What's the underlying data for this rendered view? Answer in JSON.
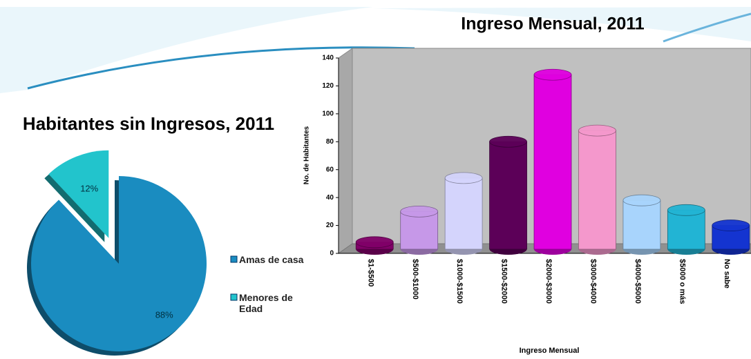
{
  "chart_data": [
    {
      "type": "pie",
      "title": "Habitantes sin Ingresos, 2011",
      "categories": [
        "Amas de casa",
        "Menores de Edad"
      ],
      "values": [
        88,
        12
      ],
      "value_labels": [
        "88%",
        "12%"
      ],
      "colors": [
        "#1a8cc0",
        "#22c4cc"
      ],
      "legend": "right"
    },
    {
      "type": "bar",
      "title": "Ingreso Mensual, 2011",
      "x_label": "Ingreso Mensual",
      "y_label": "No. de Habitantes",
      "categories": [
        "$1-$500",
        "$500-$1000",
        "$1000-$1500",
        "$1500-$2000",
        "$2000-$3000",
        "$3000-$4000",
        "$4000-$5000",
        "$5000 o más",
        "No sabe"
      ],
      "values": [
        8,
        30,
        54,
        80,
        128,
        88,
        38,
        31,
        20
      ],
      "colors": [
        "#800068",
        "#c698e8",
        "#d4d4fc",
        "#5c0058",
        "#e000e0",
        "#f498cc",
        "#a8d4fc",
        "#22b4d4",
        "#1434d0"
      ],
      "ylim": [
        0,
        140
      ],
      "yticks": [
        0,
        20,
        40,
        60,
        80,
        100,
        120,
        140
      ]
    }
  ]
}
